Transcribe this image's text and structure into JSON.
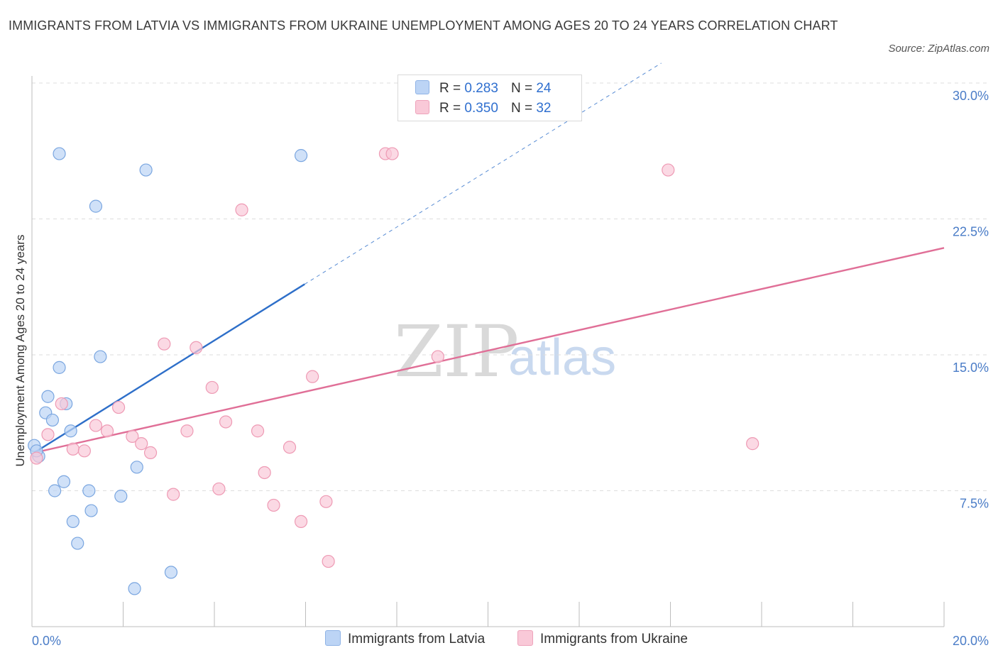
{
  "title": "IMMIGRANTS FROM LATVIA VS IMMIGRANTS FROM UKRAINE UNEMPLOYMENT AMONG AGES 20 TO 24 YEARS CORRELATION CHART",
  "source": "Source: ZipAtlas.com",
  "watermark": {
    "zip": "ZIP",
    "atlas": "atlas"
  },
  "legend_top": [
    {
      "r_label": "R =",
      "r_value": "0.283",
      "n_label": "N =",
      "n_value": "24",
      "color": "#bcd4f5",
      "border": "#8fb3e6"
    },
    {
      "r_label": "R =",
      "r_value": "0.350",
      "n_label": "N =",
      "n_value": "32",
      "color": "#f9c9d8",
      "border": "#eea3bb"
    }
  ],
  "chart_data": {
    "type": "scatter",
    "title": "IMMIGRANTS FROM LATVIA VS IMMIGRANTS FROM UKRAINE UNEMPLOYMENT AMONG AGES 20 TO 24 YEARS CORRELATION CHART",
    "xlabel": "",
    "ylabel": "Unemployment Among Ages 20 to 24 years",
    "xlim": [
      0,
      20
    ],
    "ylim": [
      0,
      30
    ],
    "x_tick_labels": [
      {
        "value": 0,
        "label": "0.0%"
      },
      {
        "value": 20,
        "label": "20.0%"
      }
    ],
    "y_tick_labels": [
      {
        "value": 7.5,
        "label": "7.5%"
      },
      {
        "value": 15,
        "label": "15.0%"
      },
      {
        "value": 22.5,
        "label": "22.5%"
      },
      {
        "value": 30,
        "label": "30.0%"
      }
    ],
    "grid": "horizontal dashed",
    "legend_position": "bottom-center",
    "series": [
      {
        "name": "Immigrants from Latvia",
        "color": "#bcd4f5",
        "stroke": "#7aa6e0",
        "line_color": "#2e6fc9",
        "trend": {
          "x": [
            0.05,
            5.98
          ],
          "y": [
            9.6,
            18.9
          ]
        },
        "trend_extension": {
          "x": [
            5.98,
            13.8
          ],
          "y": [
            18.9,
            31.1
          ]
        },
        "points": [
          {
            "x": 0.6,
            "y": 26.1
          },
          {
            "x": 2.5,
            "y": 25.2
          },
          {
            "x": 5.9,
            "y": 26.0
          },
          {
            "x": 1.4,
            "y": 23.2
          },
          {
            "x": 1.5,
            "y": 14.9
          },
          {
            "x": 0.6,
            "y": 14.3
          },
          {
            "x": 0.35,
            "y": 12.7
          },
          {
            "x": 0.75,
            "y": 12.3
          },
          {
            "x": 0.3,
            "y": 11.8
          },
          {
            "x": 0.45,
            "y": 11.4
          },
          {
            "x": 0.85,
            "y": 10.8
          },
          {
            "x": 0.05,
            "y": 10.0
          },
          {
            "x": 0.15,
            "y": 9.4
          },
          {
            "x": 2.3,
            "y": 8.8
          },
          {
            "x": 0.7,
            "y": 8.0
          },
          {
            "x": 0.5,
            "y": 7.5
          },
          {
            "x": 1.25,
            "y": 7.5
          },
          {
            "x": 1.95,
            "y": 7.2
          },
          {
            "x": 1.3,
            "y": 6.4
          },
          {
            "x": 0.9,
            "y": 5.8
          },
          {
            "x": 1.0,
            "y": 4.6
          },
          {
            "x": 3.05,
            "y": 3.0
          },
          {
            "x": 2.25,
            "y": 2.1
          },
          {
            "x": 0.1,
            "y": 9.7
          }
        ]
      },
      {
        "name": "Immigrants from Ukraine",
        "color": "#f9c9d8",
        "stroke": "#ee9ab4",
        "line_color": "#e06f97",
        "trend": {
          "x": [
            0.05,
            20.0
          ],
          "y": [
            9.6,
            20.9
          ]
        },
        "points": [
          {
            "x": 7.75,
            "y": 26.1
          },
          {
            "x": 7.9,
            "y": 26.1
          },
          {
            "x": 13.95,
            "y": 25.2
          },
          {
            "x": 4.6,
            "y": 23.0
          },
          {
            "x": 2.9,
            "y": 15.6
          },
          {
            "x": 3.6,
            "y": 15.4
          },
          {
            "x": 8.9,
            "y": 14.9
          },
          {
            "x": 6.15,
            "y": 13.8
          },
          {
            "x": 3.95,
            "y": 13.2
          },
          {
            "x": 0.65,
            "y": 12.3
          },
          {
            "x": 1.9,
            "y": 12.1
          },
          {
            "x": 4.25,
            "y": 11.3
          },
          {
            "x": 1.4,
            "y": 11.1
          },
          {
            "x": 1.65,
            "y": 10.8
          },
          {
            "x": 3.4,
            "y": 10.8
          },
          {
            "x": 4.95,
            "y": 10.8
          },
          {
            "x": 0.35,
            "y": 10.6
          },
          {
            "x": 2.2,
            "y": 10.5
          },
          {
            "x": 2.4,
            "y": 10.1
          },
          {
            "x": 15.8,
            "y": 10.1
          },
          {
            "x": 5.65,
            "y": 9.9
          },
          {
            "x": 0.9,
            "y": 9.8
          },
          {
            "x": 1.15,
            "y": 9.7
          },
          {
            "x": 2.6,
            "y": 9.6
          },
          {
            "x": 0.1,
            "y": 9.3
          },
          {
            "x": 5.1,
            "y": 8.5
          },
          {
            "x": 4.1,
            "y": 7.6
          },
          {
            "x": 3.1,
            "y": 7.3
          },
          {
            "x": 6.45,
            "y": 6.9
          },
          {
            "x": 5.3,
            "y": 6.7
          },
          {
            "x": 5.9,
            "y": 5.8
          },
          {
            "x": 6.5,
            "y": 3.6
          }
        ]
      }
    ]
  }
}
